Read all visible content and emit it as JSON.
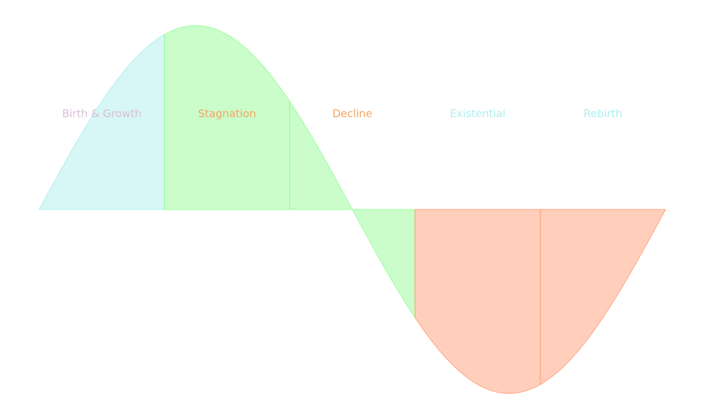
{
  "chart_data": {
    "type": "area",
    "title": "",
    "xlabel": "",
    "ylabel": "",
    "xlim": [
      0,
      6.283185
    ],
    "ylim": [
      -1,
      1
    ],
    "grid": false,
    "axes_visible": false,
    "curve": "sine",
    "stages": [
      {
        "name": "Birth & Growth",
        "x_start": 0.0,
        "x_end": 1.256637,
        "fill": "#afeeee",
        "label_color": "#d8bfd8"
      },
      {
        "name": "Stagnation",
        "x_start": 1.256637,
        "x_end": 2.513274,
        "fill": "#98fb98",
        "label_color": "#f4a460"
      },
      {
        "name": "Decline",
        "x_start": 2.513274,
        "x_end": 3.769911,
        "fill": "#98fb98",
        "label_color": "#f4a460"
      },
      {
        "name": "Existential",
        "x_start": 3.769911,
        "x_end": 5.026548,
        "fill": "#ffa07a",
        "label_color": "#afeeee"
      },
      {
        "name": "Rebirth",
        "x_start": 5.026548,
        "x_end": 6.283185,
        "fill": "#ffa07a",
        "label_color": "#afeeee"
      }
    ],
    "label_y": 0.52,
    "fill_opacity": 0.5
  }
}
